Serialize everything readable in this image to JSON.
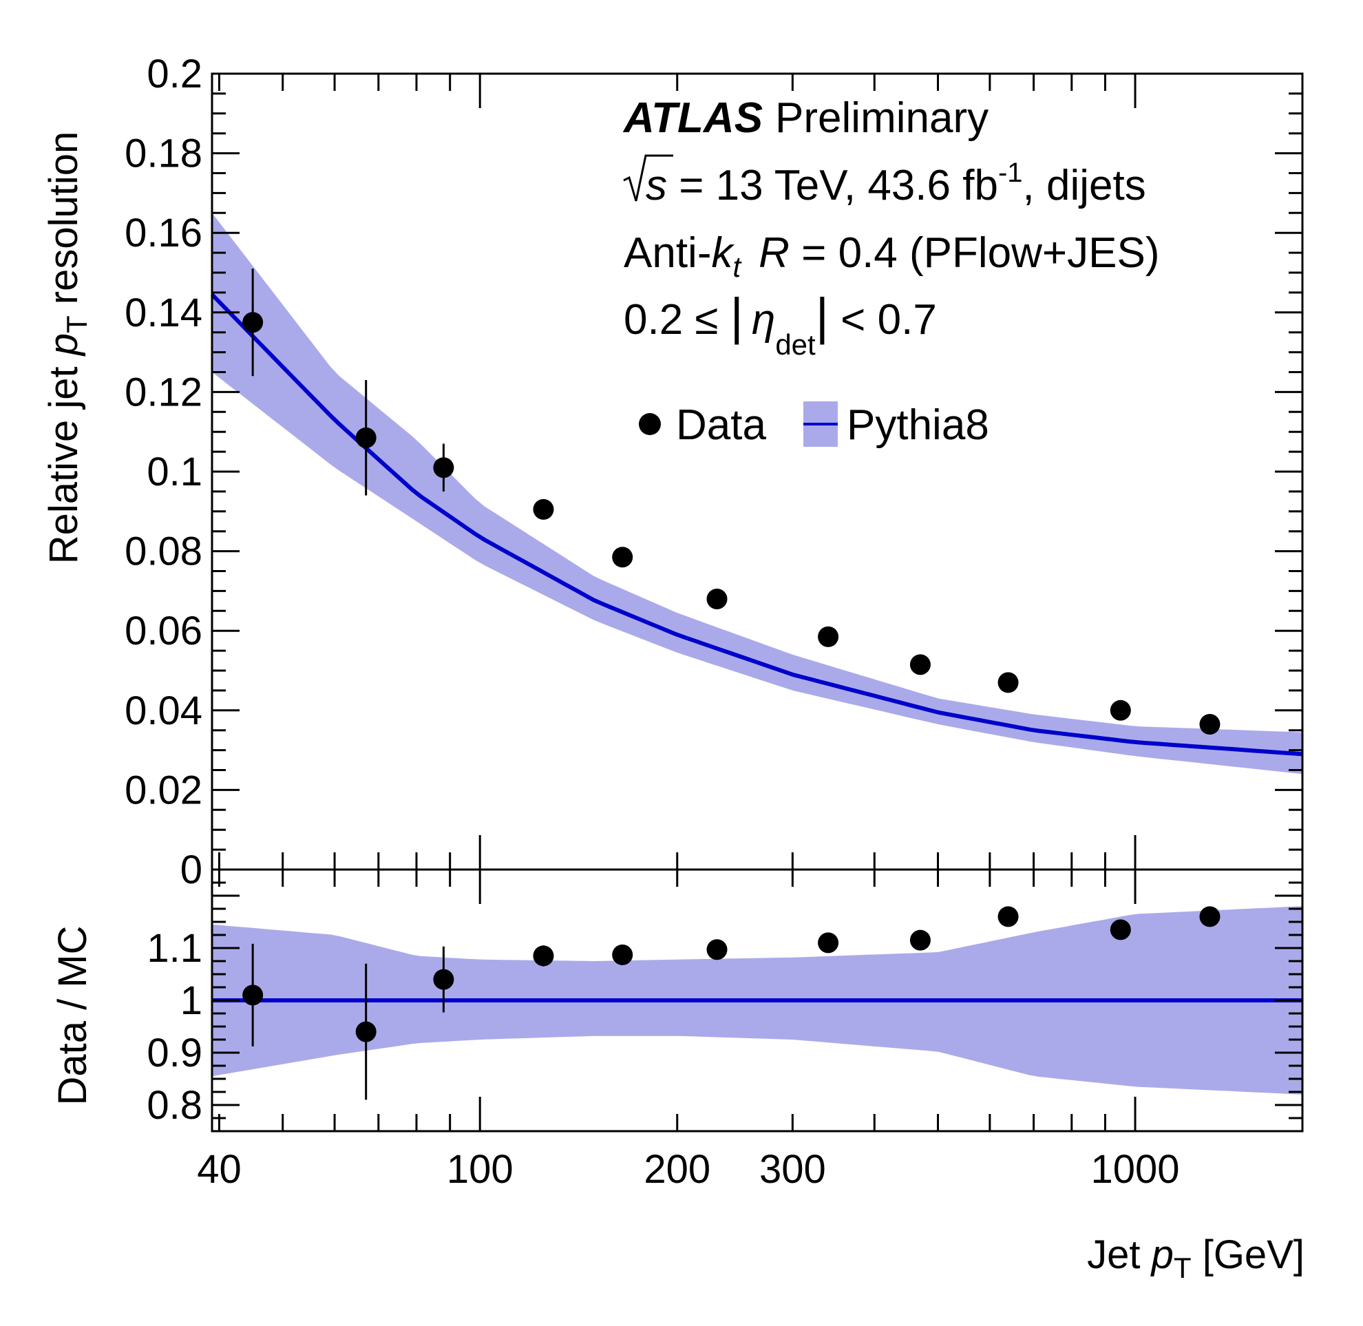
{
  "chart_data": {
    "type": "scatter",
    "label_lines": {
      "experiment": "ATLAS",
      "status": "Preliminary",
      "energy_sqrt": "s",
      "energy_rest": " = 13 TeV, 43.6 fb",
      "lumi_exponent": "-1",
      "lumi_suffix": ", dijets",
      "algo_anti": "Anti-",
      "algo_k": "k",
      "algo_t": "t",
      "algo_R": "R",
      "algo_rest": " = 0.4 (PFlow+JES)",
      "eta_lower": "0.2 ≤ ",
      "eta_bar_left": "|",
      "eta_symbol": "η",
      "eta_sub": "det",
      "eta_bar_right": "|",
      "eta_upper": " < 0.7"
    },
    "legend": {
      "data": "Data",
      "mc": "Pythia8",
      "placement": "top-center"
    },
    "xaxis": {
      "label_prefix": "Jet ",
      "label_var": "p",
      "label_sub": "T",
      "label_unit": " [GeV]",
      "scale": "log",
      "xlim": [
        39,
        1800
      ],
      "ticks": [
        40,
        100,
        200,
        300,
        1000
      ],
      "tick_labels": [
        "40",
        "100",
        "200",
        "300",
        "1000"
      ]
    },
    "top_panel": {
      "ylabel_prefix": "Relative jet ",
      "ylabel_var": "p",
      "ylabel_sub": "T",
      "ylabel_suffix": " resolution",
      "ylim": [
        0,
        0.2
      ],
      "ticks": [
        0,
        0.02,
        0.04,
        0.06,
        0.08,
        0.1,
        0.12,
        0.14,
        0.16,
        0.18,
        0.2
      ],
      "tick_labels": [
        "0",
        "0.02",
        "0.04",
        "0.06",
        "0.08",
        "0.1",
        "0.12",
        "0.14",
        "0.16",
        "0.18",
        "0.2"
      ],
      "data": {
        "name": "Data",
        "x": [
          45,
          67,
          88,
          125,
          165,
          230,
          340,
          470,
          640,
          950,
          1300
        ],
        "y": [
          0.1375,
          0.1085,
          0.101,
          0.0905,
          0.0785,
          0.068,
          0.0585,
          0.0515,
          0.047,
          0.04,
          0.0365
        ],
        "yerr": [
          0.0135,
          0.0145,
          0.006,
          0.001,
          0.001,
          0.001,
          0.001,
          0.001,
          0.001,
          0.001,
          0.001
        ]
      },
      "mc": {
        "name": "Pythia8",
        "x": [
          39,
          60,
          80,
          100,
          150,
          200,
          300,
          500,
          700,
          1000,
          1800
        ],
        "y": [
          0.1445,
          0.113,
          0.0945,
          0.0835,
          0.0675,
          0.059,
          0.049,
          0.0395,
          0.035,
          0.032,
          0.029
        ],
        "band_low": [
          0.125,
          0.101,
          0.0875,
          0.077,
          0.0625,
          0.0545,
          0.045,
          0.0365,
          0.032,
          0.0285,
          0.024
        ],
        "band_high": [
          0.165,
          0.125,
          0.108,
          0.092,
          0.0735,
          0.0645,
          0.054,
          0.043,
          0.039,
          0.036,
          0.0345
        ]
      }
    },
    "ratio_panel": {
      "ylabel": "Data / MC",
      "ylim": [
        0.75,
        1.25
      ],
      "ticks": [
        0.8,
        0.9,
        1.0,
        1.1
      ],
      "tick_labels": [
        "0.8",
        "0.9",
        "1",
        "1.1"
      ],
      "data": {
        "x": [
          45,
          67,
          88,
          125,
          165,
          230,
          340,
          470,
          640,
          950,
          1300
        ],
        "y": [
          1.01,
          0.94,
          1.04,
          1.085,
          1.087,
          1.097,
          1.11,
          1.115,
          1.16,
          1.135,
          1.16
        ],
        "yerr": [
          0.098,
          0.13,
          0.063,
          0.02,
          0.0,
          0.0,
          0.0,
          0.0,
          0.0,
          0.0,
          0.018
        ]
      },
      "mc_band": {
        "x": [
          39,
          60,
          80,
          100,
          150,
          200,
          300,
          500,
          700,
          1000,
          1800
        ],
        "low": [
          0.855,
          0.895,
          0.918,
          0.925,
          0.932,
          0.932,
          0.925,
          0.902,
          0.855,
          0.835,
          0.82
        ],
        "high": [
          1.145,
          1.125,
          1.085,
          1.078,
          1.075,
          1.078,
          1.082,
          1.092,
          1.13,
          1.165,
          1.18
        ]
      }
    },
    "colors": {
      "band": "#aaaaea",
      "line": "#0000cc",
      "marker": "#000000",
      "frame": "#000000"
    }
  }
}
